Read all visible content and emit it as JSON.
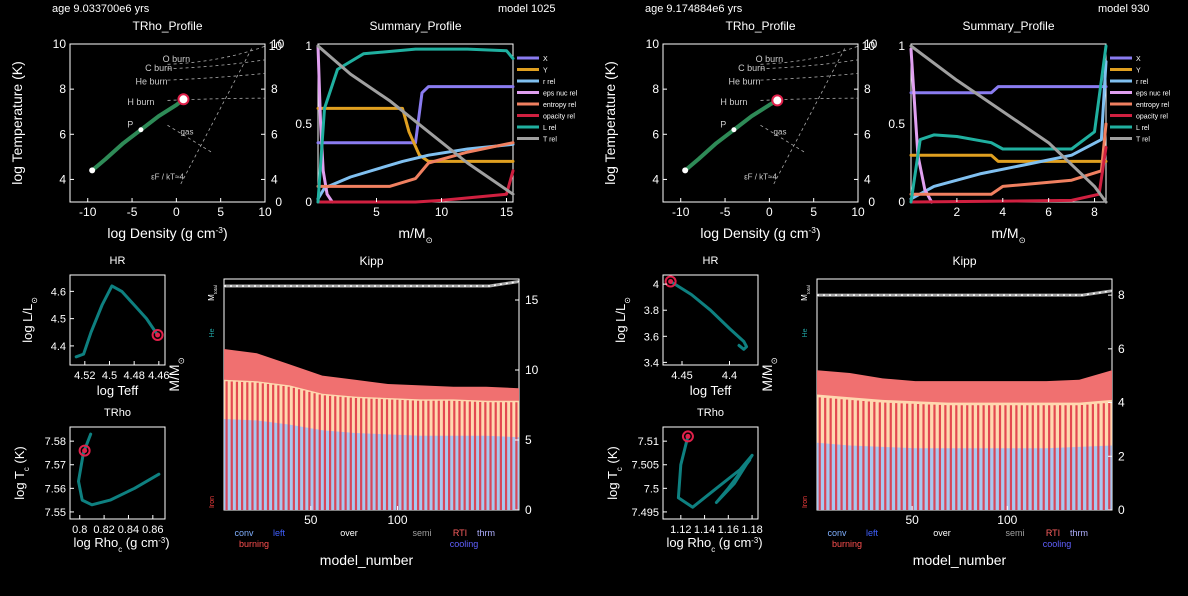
{
  "headers": [
    {
      "left": "age 9.033700e6 yrs",
      "right": "model 1025"
    },
    {
      "left": "age 9.174884e6 yrs",
      "right": "model 930"
    }
  ],
  "chart_data": [
    {
      "panel": "left",
      "name": "TRho_Profile",
      "type": "line",
      "title": "TRho_Profile",
      "xlabel": "log Density (g cm",
      "xlabel_sup": "-3",
      "xlabel_end": ")",
      "ylabel": "log Temperature (K)",
      "xlim": [
        -12,
        10
      ],
      "ylim": [
        3,
        10
      ],
      "xticks": [
        -10,
        -5,
        0,
        5,
        10
      ],
      "yticks": [
        4,
        6,
        8,
        10
      ],
      "annotations": [
        "O burn",
        "C burn",
        "He burn",
        "H burn",
        "P",
        "gas",
        "εF / kT≈4"
      ],
      "profile": {
        "x": [
          -9.5,
          -8,
          -6,
          -4,
          -2,
          0,
          0.8
        ],
        "y": [
          4.4,
          4.9,
          5.6,
          6.2,
          6.8,
          7.3,
          7.55
        ]
      },
      "marker": {
        "x": 0.8,
        "y": 7.55
      }
    },
    {
      "panel": "left",
      "name": "Summary_Profile",
      "type": "line",
      "title": "Summary_Profile",
      "xlabel": "m/M",
      "xlabel_sub": "⊙",
      "xlim": [
        0.5,
        15.5
      ],
      "ylim": [
        0,
        1
      ],
      "xticks": [
        5,
        10,
        15
      ],
      "yticks_left": [
        0,
        0.5,
        1
      ],
      "yticks_right": [
        0,
        2,
        4,
        6,
        8,
        10
      ],
      "legend": [
        "X",
        "Y",
        "r rel",
        "eps nuc rel",
        "entropy rel",
        "opacity rel",
        "L rel",
        "T rel"
      ],
      "series": [
        {
          "name": "X",
          "color": "#8a7cf0",
          "x": [
            0.5,
            8,
            8.5,
            9,
            15.5
          ],
          "y": [
            0.38,
            0.38,
            0.7,
            0.74,
            0.74
          ]
        },
        {
          "name": "Y",
          "color": "#e0a020",
          "x": [
            0.5,
            7,
            7.5,
            8.3,
            9,
            15.5
          ],
          "y": [
            0.6,
            0.6,
            0.45,
            0.3,
            0.26,
            0.26
          ]
        },
        {
          "name": "r rel",
          "color": "#80c0f0",
          "x": [
            0.5,
            1,
            3,
            5,
            7,
            9,
            12,
            15.5
          ],
          "y": [
            0.02,
            0.09,
            0.16,
            0.21,
            0.26,
            0.3,
            0.34,
            0.37
          ]
        },
        {
          "name": "eps nuc rel",
          "color": "#e0a0f0",
          "x": [
            0.5,
            0.7,
            0.9,
            1.2,
            1.6
          ],
          "y": [
            1,
            0.5,
            0.2,
            0.05,
            0
          ]
        },
        {
          "name": "entropy rel",
          "color": "#f08060",
          "x": [
            0.5,
            6,
            8,
            9,
            12,
            15.5
          ],
          "y": [
            0.1,
            0.1,
            0.15,
            0.25,
            0.32,
            0.38
          ]
        },
        {
          "name": "opacity rel",
          "color": "#d02040",
          "x": [
            0.5,
            8,
            10,
            15,
            15.5
          ],
          "y": [
            0,
            0,
            0.01,
            0.05,
            0.2
          ]
        },
        {
          "name": "L rel",
          "color": "#20b0a0",
          "x": [
            0.5,
            1,
            2,
            4,
            8,
            12,
            15,
            15.5
          ],
          "y": [
            0,
            0.6,
            0.85,
            0.95,
            0.98,
            0.98,
            0.97,
            0.92
          ]
        },
        {
          "name": "T rel",
          "color": "#a0a0a0",
          "x": [
            0.5,
            3,
            6,
            9,
            12,
            15.5
          ],
          "y": [
            1,
            0.82,
            0.65,
            0.45,
            0.25,
            0.05
          ]
        }
      ]
    },
    {
      "panel": "left",
      "name": "HR",
      "type": "line",
      "title": "HR",
      "xlabel": "log Teff",
      "ylabel": "log L/L",
      "ylabel_sub": "⊙",
      "xticks": [
        "4.52",
        "4.5",
        "4.48",
        "4.46"
      ],
      "yticks": [
        "4.4",
        "4.5",
        "4.6"
      ],
      "xlim": [
        4.532,
        4.455
      ],
      "ylim": [
        4.33,
        4.66
      ],
      "track": {
        "x": [
          4.527,
          4.521,
          4.515,
          4.506,
          4.498,
          4.49,
          4.48,
          4.47,
          4.461
        ],
        "y": [
          4.36,
          4.37,
          4.45,
          4.55,
          4.62,
          4.6,
          4.55,
          4.5,
          4.44
        ]
      },
      "marker": {
        "x": 4.461,
        "y": 4.44
      }
    },
    {
      "panel": "left",
      "name": "TRho",
      "type": "line",
      "title": "TRho",
      "xlabel": "log Rho",
      "xlabel_sub": "c",
      "xlabel_end": " (g cm",
      "xlabel_sup": "-3",
      "xlabel_close": ")",
      "ylabel": "log T",
      "ylabel_sub": "c",
      "ylabel_end": " (K)",
      "xticks": [
        "0.8",
        "0.82",
        "0.84",
        "0.86"
      ],
      "yticks": [
        "7.55",
        "7.56",
        "7.57",
        "7.58"
      ],
      "xlim": [
        0.792,
        0.87
      ],
      "ylim": [
        7.547,
        7.586
      ],
      "track": {
        "x": [
          0.809,
          0.803,
          0.799,
          0.802,
          0.81,
          0.825,
          0.845,
          0.865
        ],
        "y": [
          7.583,
          7.575,
          7.563,
          7.555,
          7.553,
          7.555,
          7.56,
          7.566
        ]
      },
      "marker": {
        "x": 0.804,
        "y": 7.576
      }
    },
    {
      "panel": "left",
      "name": "Kipp",
      "type": "area",
      "title": "Kipp",
      "xlabel": "model_number",
      "ylabel": "M/M",
      "ylabel_sub": "⊙",
      "xlim": [
        0,
        170
      ],
      "ylim": [
        0,
        16.5
      ],
      "xticks": [
        50,
        100
      ],
      "yticks": [
        0,
        5,
        10,
        15
      ],
      "side_labels": [
        "M",
        "total",
        "He",
        "Iron"
      ],
      "mtotal": 16,
      "layers": {
        "top": [
          11.5,
          11.2,
          10.4,
          9.6,
          9.3,
          9,
          8.9,
          8.8,
          8.8,
          8.7
        ],
        "conv": [
          9.3,
          9.2,
          8.9,
          8.3,
          8.1,
          8,
          7.9,
          7.9,
          7.8,
          7.8
        ],
        "burn": [
          6.5,
          6.4,
          6.1,
          5.7,
          5.5,
          5.4,
          5.3,
          5.3,
          5.3,
          5.2
        ]
      },
      "stripes": 57,
      "legend": [
        {
          "text": "conv",
          "color": "#80b0ff"
        },
        {
          "text": "left",
          "color": "#4060ff"
        },
        {
          "text": "over",
          "color": "#ffffff"
        },
        {
          "text": "semi",
          "color": "#a0a0a0"
        },
        {
          "text": "RTI",
          "color": "#ff6060"
        },
        {
          "text": "thrm",
          "color": "#b0b0ff"
        },
        {
          "text": "burning",
          "color": "#ff5050"
        },
        {
          "text": "cooling",
          "color": "#6060ff"
        }
      ]
    },
    {
      "panel": "right",
      "name": "TRho_Profile",
      "type": "line",
      "title": "TRho_Profile",
      "xlabel": "log Density (g cm",
      "xlabel_sup": "-3",
      "xlabel_end": ")",
      "ylabel": "log Temperature (K)",
      "xlim": [
        -12,
        10
      ],
      "ylim": [
        3,
        10
      ],
      "xticks": [
        -10,
        -5,
        0,
        5,
        10
      ],
      "yticks": [
        4,
        6,
        8,
        10
      ],
      "annotations": [
        "O burn",
        "C burn",
        "He burn",
        "H burn",
        "P",
        "gas",
        "εF / kT≈4"
      ],
      "profile": {
        "x": [
          -9.5,
          -8,
          -6,
          -4,
          -2,
          0,
          0.9
        ],
        "y": [
          4.4,
          4.9,
          5.6,
          6.2,
          6.8,
          7.3,
          7.5
        ]
      },
      "marker": {
        "x": 0.9,
        "y": 7.5
      }
    },
    {
      "panel": "right",
      "name": "Summary_Profile",
      "type": "line",
      "title": "Summary_Profile",
      "xlabel": "m/M",
      "xlabel_sub": "⊙",
      "xlim": [
        0,
        8.5
      ],
      "ylim": [
        0,
        1
      ],
      "xticks": [
        2,
        4,
        6,
        8
      ],
      "yticks_left": [
        0,
        0.5,
        1
      ],
      "yticks_right": [
        0,
        2,
        4,
        6,
        8,
        10
      ],
      "legend": [
        "X",
        "Y",
        "r rel",
        "eps nuc rel",
        "entropy rel",
        "opacity rel",
        "L rel",
        "T rel"
      ],
      "series": [
        {
          "name": "X",
          "color": "#8a7cf0",
          "x": [
            0,
            3.5,
            3.8,
            8.5
          ],
          "y": [
            0.7,
            0.7,
            0.74,
            0.74
          ]
        },
        {
          "name": "Y",
          "color": "#e0a020",
          "x": [
            0,
            3.5,
            3.8,
            8.5
          ],
          "y": [
            0.3,
            0.3,
            0.26,
            0.26
          ]
        },
        {
          "name": "r rel",
          "color": "#80c0f0",
          "x": [
            0,
            1,
            3,
            5,
            7,
            8.3,
            8.5
          ],
          "y": [
            0.02,
            0.1,
            0.18,
            0.24,
            0.3,
            0.4,
            0.9
          ]
        },
        {
          "name": "eps nuc rel",
          "color": "#e0a0f0",
          "x": [
            0,
            0.3,
            0.6,
            0.9
          ],
          "y": [
            0.98,
            0.3,
            0.08,
            0
          ]
        },
        {
          "name": "entropy rel",
          "color": "#f08060",
          "x": [
            0,
            3.5,
            4,
            7,
            8.3,
            8.5
          ],
          "y": [
            0.05,
            0.05,
            0.1,
            0.14,
            0.2,
            0.5
          ]
        },
        {
          "name": "opacity rel",
          "color": "#d02040",
          "x": [
            0,
            7,
            8.2,
            8.5
          ],
          "y": [
            0,
            0.01,
            0.05,
            0.35
          ]
        },
        {
          "name": "L rel",
          "color": "#20b0a0",
          "x": [
            0,
            0.4,
            1,
            2,
            3.5,
            4,
            7,
            8,
            8.5
          ],
          "y": [
            0,
            0.4,
            0.43,
            0.42,
            0.38,
            0.34,
            0.34,
            0.45,
            1
          ]
        },
        {
          "name": "T rel",
          "color": "#a0a0a0",
          "x": [
            0,
            2,
            4,
            6,
            8,
            8.5
          ],
          "y": [
            1,
            0.78,
            0.58,
            0.38,
            0.1,
            0
          ]
        }
      ]
    },
    {
      "panel": "right",
      "name": "HR",
      "type": "line",
      "title": "HR",
      "xlabel": "log Teff",
      "ylabel": "log L/L",
      "ylabel_sub": "⊙",
      "xticks": [
        "4.45",
        "4.4"
      ],
      "yticks": [
        "3.4",
        "3.6",
        "3.8",
        "4"
      ],
      "xlim": [
        4.47,
        4.37
      ],
      "ylim": [
        3.38,
        4.07
      ],
      "track": {
        "x": [
          4.462,
          4.44,
          4.42,
          4.4,
          4.385,
          4.382,
          4.385,
          4.39
        ],
        "y": [
          4.02,
          3.92,
          3.8,
          3.66,
          3.56,
          3.52,
          3.5,
          3.53
        ]
      },
      "marker": {
        "x": 4.462,
        "y": 4.02
      }
    },
    {
      "panel": "right",
      "name": "TRho",
      "type": "line",
      "title": "TRho",
      "xlabel": "log Rho",
      "xlabel_sub": "c",
      "xlabel_end": " (g cm",
      "xlabel_sup": "-3",
      "xlabel_close": ")",
      "ylabel": "log T",
      "ylabel_sub": "c",
      "ylabel_end": " (K)",
      "xticks": [
        "1.12",
        "1.14",
        "1.16",
        "1.18"
      ],
      "yticks": [
        "7.495",
        "7.5",
        "7.505",
        "7.51"
      ],
      "xlim": [
        1.105,
        1.185
      ],
      "ylim": [
        7.4935,
        7.513
      ],
      "track": {
        "x": [
          1.126,
          1.12,
          1.118,
          1.13,
          1.15,
          1.17,
          1.18,
          1.165,
          1.15,
          1.16,
          1.178
        ],
        "y": [
          7.511,
          7.505,
          7.498,
          7.496,
          7.5,
          7.504,
          7.507,
          7.501,
          7.497,
          7.5,
          7.506
        ]
      },
      "marker": {
        "x": 1.126,
        "y": 7.511
      }
    },
    {
      "panel": "right",
      "name": "Kipp",
      "type": "area",
      "title": "Kipp",
      "xlabel": "model_number",
      "ylabel": "M/M",
      "ylabel_sub": "⊙",
      "xlim": [
        0,
        155
      ],
      "ylim": [
        0,
        8.6
      ],
      "xticks": [
        50,
        100
      ],
      "yticks": [
        0,
        2,
        4,
        6,
        8
      ],
      "side_labels": [
        "M",
        "total",
        "He",
        "Iron"
      ],
      "mtotal": 8,
      "layers": {
        "top": [
          5.2,
          5.1,
          4.9,
          4.8,
          4.8,
          4.8,
          4.8,
          4.8,
          4.85,
          5.2
        ],
        "conv": [
          4.3,
          4.2,
          4.1,
          4.05,
          4.0,
          4.0,
          4.0,
          4.0,
          4.0,
          4.1
        ],
        "burn": [
          2.5,
          2.4,
          2.35,
          2.3,
          2.3,
          2.3,
          2.3,
          2.3,
          2.35,
          2.4
        ]
      },
      "stripes": 54,
      "legend": [
        {
          "text": "conv",
          "color": "#80b0ff"
        },
        {
          "text": "left",
          "color": "#4060ff"
        },
        {
          "text": "over",
          "color": "#ffffff"
        },
        {
          "text": "semi",
          "color": "#a0a0a0"
        },
        {
          "text": "RTI",
          "color": "#ff6060"
        },
        {
          "text": "thrm",
          "color": "#b0b0ff"
        },
        {
          "text": "burning",
          "color": "#ff5050"
        },
        {
          "text": "cooling",
          "color": "#6060ff"
        }
      ]
    }
  ]
}
